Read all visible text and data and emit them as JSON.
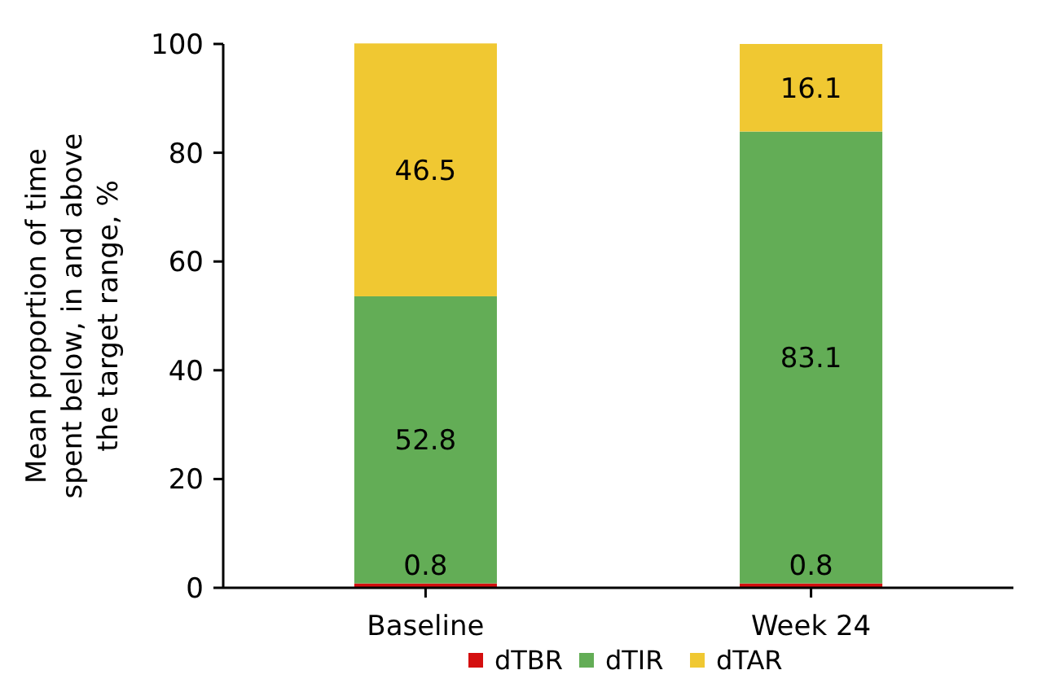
{
  "chart_data": {
    "type": "bar",
    "ylabel": "Mean proportion of time spent below, in and above the target range, %",
    "categories": [
      "Baseline",
      "Week 24"
    ],
    "stacked": true,
    "series": [
      {
        "name": "dTBR",
        "color": "#d40f0f",
        "values": [
          0.8,
          0.8
        ]
      },
      {
        "name": "dTIR",
        "color": "#63ad56",
        "values": [
          52.8,
          83.1
        ]
      },
      {
        "name": "dTAR",
        "color": "#f0c832",
        "values": [
          46.5,
          16.1
        ]
      }
    ],
    "ylim": [
      0,
      100
    ],
    "yticks": [
      0,
      20,
      40,
      60,
      80,
      100
    ],
    "data_labels": true,
    "legend": "bottom",
    "grid": false
  }
}
